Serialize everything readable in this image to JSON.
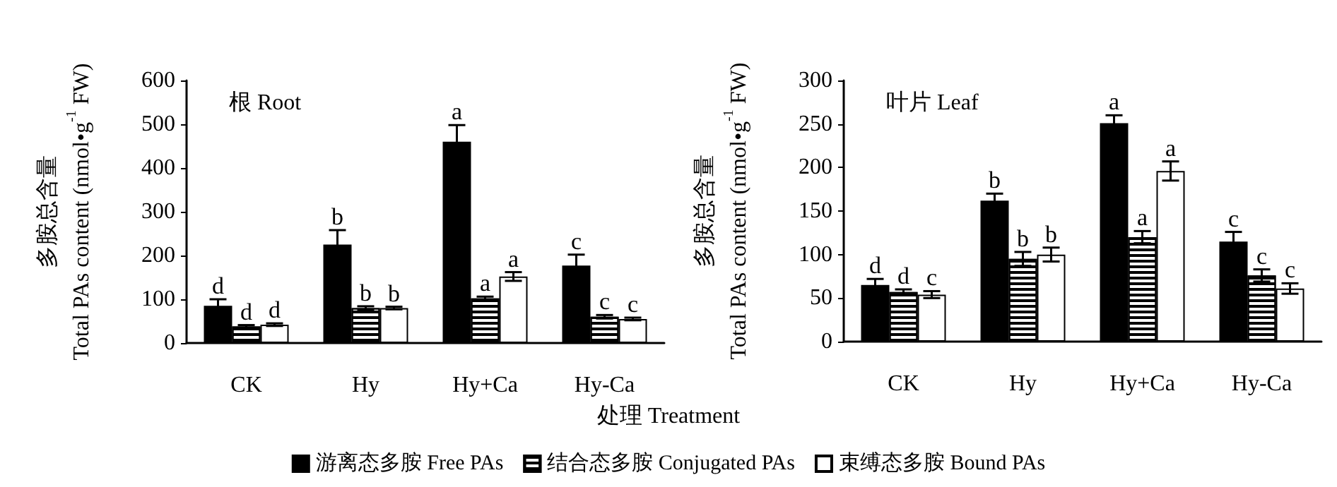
{
  "chart_data": [
    {
      "type": "bar",
      "title": "根 Root",
      "xlabel": "处理 Treatment",
      "ylabel": "多胺总含量\nTotal PAs content (nmol•g$^{-1}$ FW)",
      "categories": [
        "CK",
        "Hy",
        "Hy+Ca",
        "Hy-Ca"
      ],
      "ylim": [
        0,
        600
      ],
      "yticks": [
        0,
        100,
        200,
        300,
        400,
        500,
        600
      ],
      "grid": false,
      "legend": "bottom",
      "series": [
        {
          "name": "游离态多胺 Free PAs",
          "color": "#000000",
          "values": [
            85,
            225,
            460,
            177
          ],
          "errors": [
            15,
            33,
            38,
            25
          ],
          "value_labels": [
            "d",
            "b",
            "a",
            "c"
          ]
        },
        {
          "name": "结合态多胺 Conjugated PAs",
          "color": "#000000",
          "values": [
            38,
            80,
            102,
            60
          ],
          "errors": [
            3,
            4,
            4,
            4
          ],
          "value_labels": [
            "d",
            "b",
            "a",
            "c"
          ]
        },
        {
          "name": "束缚态多胺 Bound PAs",
          "color": "#ffffff",
          "values": [
            42,
            80,
            152,
            55
          ],
          "errors": [
            3,
            3,
            10,
            3
          ],
          "value_labels": [
            "d",
            "b",
            "a",
            "c"
          ]
        }
      ]
    },
    {
      "type": "bar",
      "title": "叶片 Leaf",
      "ylabel": "多胺总含量\nTotal PAs content (nmol•g$^{-1}$ FW)",
      "categories": [
        "CK",
        "Hy",
        "Hy+Ca",
        "Hy-Ca"
      ],
      "ylim": [
        0,
        300
      ],
      "yticks": [
        0,
        50,
        100,
        150,
        200,
        250,
        300
      ],
      "grid": false,
      "series": [
        {
          "color": "#000000",
          "values": [
            65,
            162,
            251,
            115
          ],
          "errors": [
            7,
            8,
            9,
            11
          ],
          "value_labels": [
            "d",
            "b",
            "a",
            "c"
          ]
        },
        {
          "color": "#000000",
          "values": [
            57,
            95,
            120,
            76
          ],
          "errors": [
            3,
            8,
            7,
            7
          ],
          "value_labels": [
            "d",
            "b",
            "a",
            "c"
          ]
        },
        {
          "color": "#ffffff",
          "values": [
            54,
            100,
            196,
            61
          ],
          "errors": [
            4,
            8,
            11,
            6
          ],
          "value_labels": [
            "c",
            "b",
            "a",
            "c"
          ]
        }
      ]
    }
  ]
}
